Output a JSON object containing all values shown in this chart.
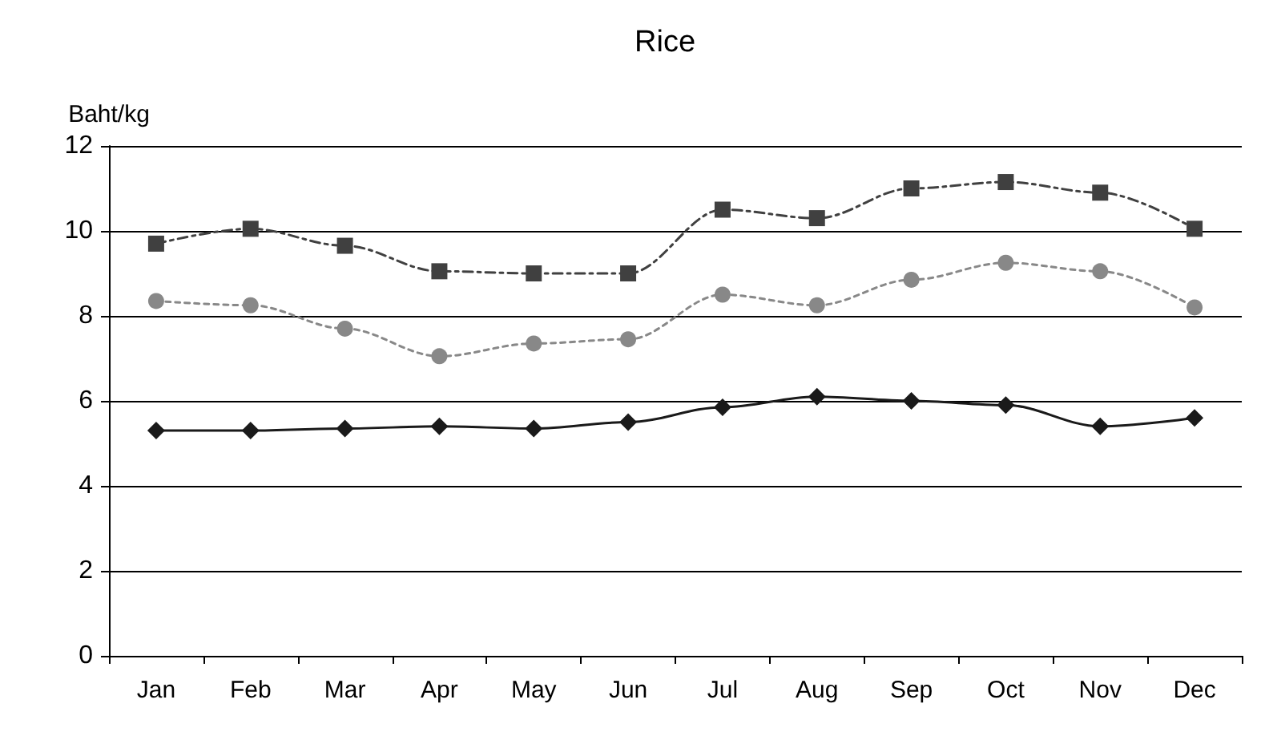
{
  "chart_data": {
    "type": "line",
    "title": "Rice",
    "ylabel": "Baht/kg",
    "categories": [
      "Jan",
      "Feb",
      "Mar",
      "Apr",
      "May",
      "Jun",
      "Jul",
      "Aug",
      "Sep",
      "Oct",
      "Nov",
      "Dec"
    ],
    "series": [
      {
        "color": "#404040",
        "marker": "square",
        "line_style": "dashed",
        "values": [
          9.7,
          10.05,
          9.65,
          9.05,
          9.0,
          9.0,
          10.5,
          10.3,
          11.0,
          11.15,
          10.9,
          10.05
        ]
      },
      {
        "color": "#888888",
        "marker": "circle",
        "line_style": "dotted",
        "values": [
          8.35,
          8.25,
          7.7,
          7.05,
          7.35,
          7.45,
          8.5,
          8.25,
          8.85,
          9.25,
          9.05,
          8.2
        ]
      },
      {
        "color": "#1a1a1a",
        "marker": "diamond",
        "line_style": "solid",
        "values": [
          5.3,
          5.3,
          5.35,
          5.4,
          5.35,
          5.5,
          5.85,
          6.1,
          6.0,
          5.9,
          5.4,
          5.6
        ]
      }
    ],
    "ylim": [
      0,
      12
    ],
    "yticks": [
      0,
      2,
      4,
      6,
      8,
      10,
      12
    ],
    "grid": "y"
  }
}
